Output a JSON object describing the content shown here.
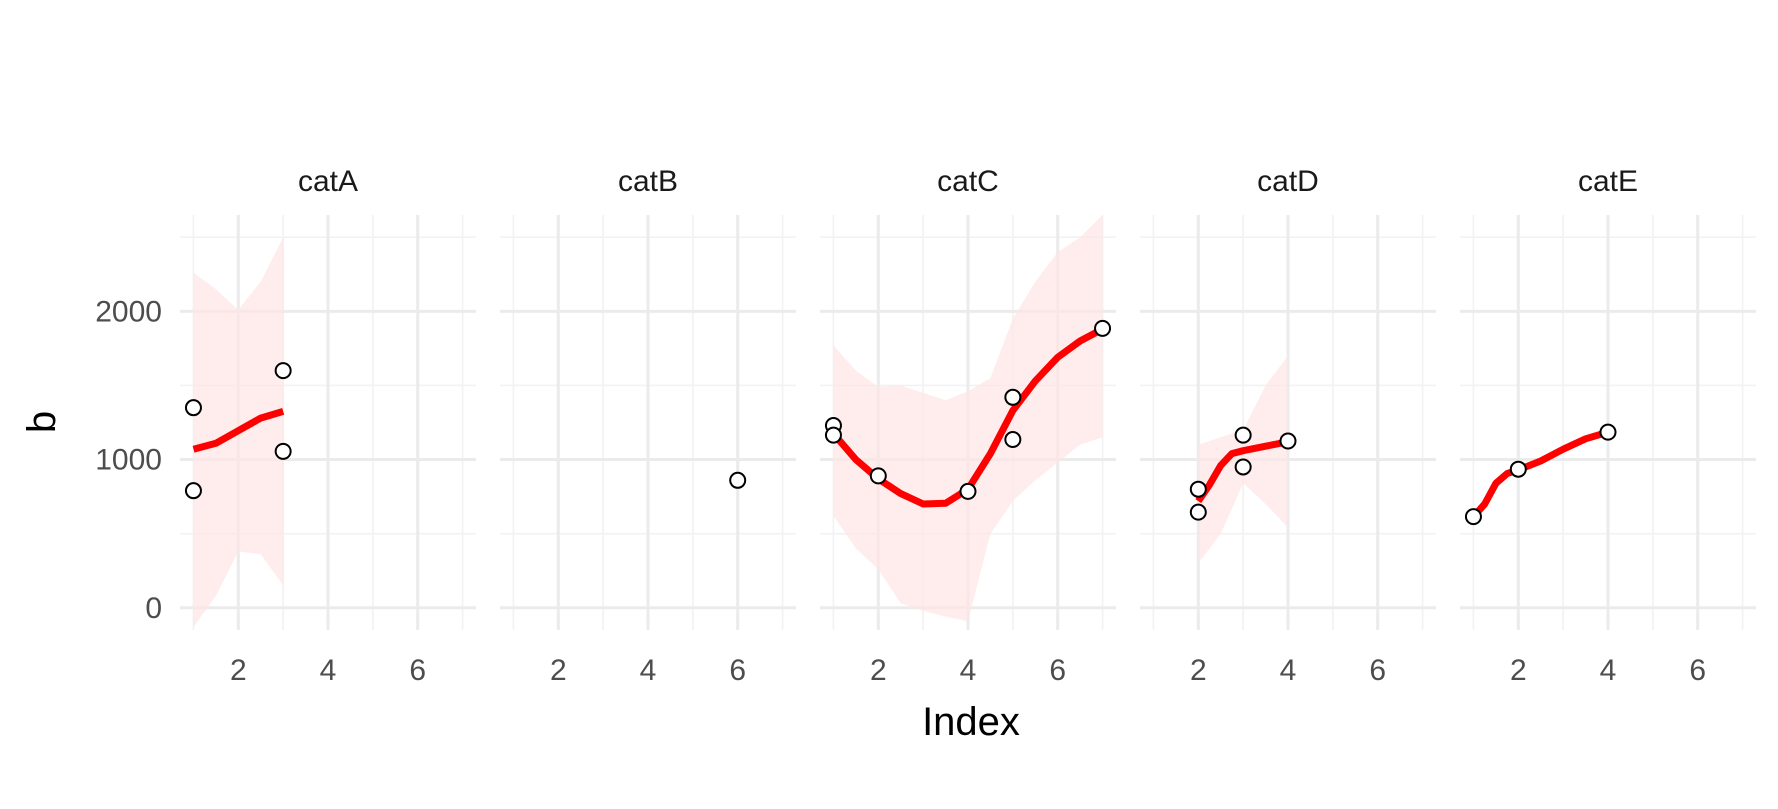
{
  "chart_data": {
    "type": "scatter",
    "xlabel": "Index",
    "ylabel": "b",
    "x_ticks": [
      2,
      4,
      6
    ],
    "y_ticks": [
      0,
      1000,
      2000
    ],
    "xlim": [
      0.7,
      7.3
    ],
    "ylim": [
      -150,
      2650
    ],
    "grid": true,
    "colors": {
      "smooth_line": "#ff0000",
      "ribbon": "#ffe6e6",
      "points": "#000000"
    },
    "panels": [
      {
        "facet": "catA",
        "points": [
          [
            1,
            1350
          ],
          [
            1,
            790
          ],
          [
            3,
            1600
          ],
          [
            3,
            1055
          ]
        ],
        "smooth": [
          [
            1,
            1070
          ],
          [
            1.5,
            1110
          ],
          [
            2,
            1195
          ],
          [
            2.5,
            1280
          ],
          [
            3,
            1325
          ]
        ],
        "ribbon_upper": [
          [
            1,
            2260
          ],
          [
            1.5,
            2150
          ],
          [
            2,
            2010
          ],
          [
            2.5,
            2200
          ],
          [
            3,
            2500
          ]
        ],
        "ribbon_lower": [
          [
            1,
            -130
          ],
          [
            1.5,
            80
          ],
          [
            2,
            380
          ],
          [
            2.5,
            360
          ],
          [
            3,
            150
          ]
        ]
      },
      {
        "facet": "catB",
        "points": [
          [
            6,
            860
          ]
        ],
        "smooth": [],
        "ribbon_upper": [],
        "ribbon_lower": []
      },
      {
        "facet": "catC",
        "points": [
          [
            1,
            1230
          ],
          [
            1,
            1165
          ],
          [
            2,
            890
          ],
          [
            4,
            785
          ],
          [
            5,
            1420
          ],
          [
            5,
            1135
          ],
          [
            7,
            1885
          ]
        ],
        "smooth": [
          [
            1,
            1175
          ],
          [
            1.5,
            1000
          ],
          [
            2,
            870
          ],
          [
            2.5,
            770
          ],
          [
            3,
            700
          ],
          [
            3.5,
            705
          ],
          [
            4,
            800
          ],
          [
            4.5,
            1040
          ],
          [
            5,
            1330
          ],
          [
            5.5,
            1530
          ],
          [
            6,
            1690
          ],
          [
            6.5,
            1800
          ],
          [
            7,
            1880
          ]
        ],
        "ribbon_upper": [
          [
            1,
            1770
          ],
          [
            1.5,
            1600
          ],
          [
            2,
            1490
          ],
          [
            2.5,
            1500
          ],
          [
            3,
            1450
          ],
          [
            3.5,
            1400
          ],
          [
            4,
            1460
          ],
          [
            4.5,
            1550
          ],
          [
            5,
            1950
          ],
          [
            5.5,
            2200
          ],
          [
            6,
            2400
          ],
          [
            6.5,
            2500
          ],
          [
            7,
            2650
          ]
        ],
        "ribbon_lower": [
          [
            1,
            620
          ],
          [
            1.5,
            400
          ],
          [
            2,
            260
          ],
          [
            2.5,
            30
          ],
          [
            3,
            -20
          ],
          [
            3.5,
            -60
          ],
          [
            4,
            -90
          ],
          [
            4.5,
            500
          ],
          [
            5,
            720
          ],
          [
            5.5,
            860
          ],
          [
            6,
            980
          ],
          [
            6.5,
            1100
          ],
          [
            7,
            1150
          ]
        ]
      },
      {
        "facet": "catD",
        "points": [
          [
            2,
            800
          ],
          [
            2,
            645
          ],
          [
            3,
            1165
          ],
          [
            3,
            950
          ],
          [
            4,
            1125
          ]
        ],
        "smooth": [
          [
            2,
            720
          ],
          [
            2.25,
            830
          ],
          [
            2.5,
            960
          ],
          [
            2.75,
            1040
          ],
          [
            3,
            1060
          ],
          [
            3.5,
            1090
          ],
          [
            4,
            1120
          ]
        ],
        "ribbon_upper": [
          [
            2,
            1100
          ],
          [
            2.5,
            1150
          ],
          [
            3,
            1200
          ],
          [
            3.5,
            1500
          ],
          [
            4,
            1700
          ]
        ],
        "ribbon_lower": [
          [
            2,
            300
          ],
          [
            2.5,
            500
          ],
          [
            3,
            840
          ],
          [
            3.5,
            700
          ],
          [
            4,
            540
          ]
        ]
      },
      {
        "facet": "catE",
        "points": [
          [
            1,
            615
          ],
          [
            2,
            935
          ],
          [
            4,
            1185
          ]
        ],
        "smooth": [
          [
            1,
            615
          ],
          [
            1.25,
            700
          ],
          [
            1.5,
            840
          ],
          [
            1.75,
            905
          ],
          [
            2,
            930
          ],
          [
            2.5,
            990
          ],
          [
            3,
            1070
          ],
          [
            3.5,
            1140
          ],
          [
            4,
            1185
          ]
        ],
        "ribbon_upper": [],
        "ribbon_lower": []
      }
    ]
  }
}
